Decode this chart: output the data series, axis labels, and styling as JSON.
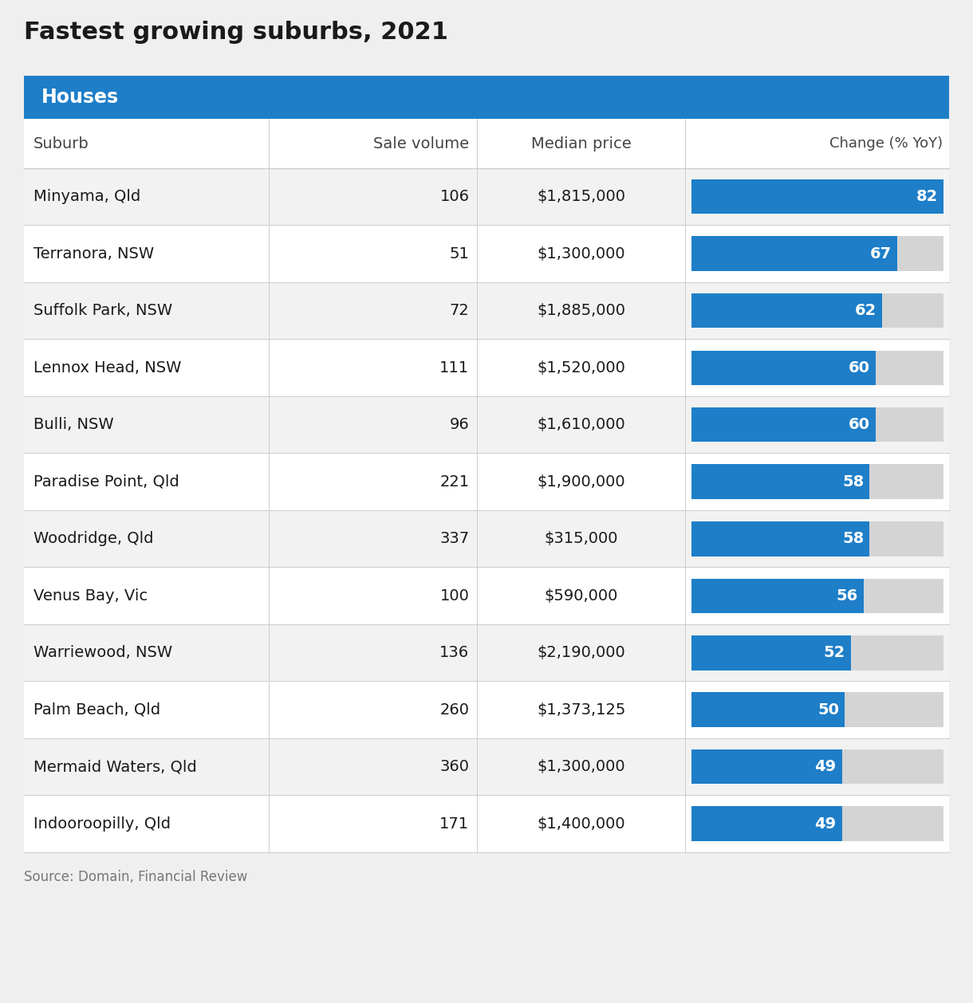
{
  "title": "Fastest growing suburbs, 2021",
  "section_header": "Houses",
  "col_headers": [
    "Suburb",
    "Sale volume",
    "Median price",
    "Change (% YoY)"
  ],
  "rows": [
    {
      "suburb": "Minyama, Qld",
      "sale_volume": "106",
      "median_price": "$1,815,000",
      "change": 82
    },
    {
      "suburb": "Terranora, NSW",
      "sale_volume": "51",
      "median_price": "$1,300,000",
      "change": 67
    },
    {
      "suburb": "Suffolk Park, NSW",
      "sale_volume": "72",
      "median_price": "$1,885,000",
      "change": 62
    },
    {
      "suburb": "Lennox Head, NSW",
      "sale_volume": "111",
      "median_price": "$1,520,000",
      "change": 60
    },
    {
      "suburb": "Bulli, NSW",
      "sale_volume": "96",
      "median_price": "$1,610,000",
      "change": 60
    },
    {
      "suburb": "Paradise Point, Qld",
      "sale_volume": "221",
      "median_price": "$1,900,000",
      "change": 58
    },
    {
      "suburb": "Woodridge, Qld",
      "sale_volume": "337",
      "median_price": "$315,000",
      "change": 58
    },
    {
      "suburb": "Venus Bay, Vic",
      "sale_volume": "100",
      "median_price": "$590,000",
      "change": 56
    },
    {
      "suburb": "Warriewood, NSW",
      "sale_volume": "136",
      "median_price": "$2,190,000",
      "change": 52
    },
    {
      "suburb": "Palm Beach, Qld",
      "sale_volume": "260",
      "median_price": "$1,373,125",
      "change": 50
    },
    {
      "suburb": "Mermaid Waters, Qld",
      "sale_volume": "360",
      "median_price": "$1,300,000",
      "change": 49
    },
    {
      "suburb": "Indooroopilly, Qld",
      "sale_volume": "171",
      "median_price": "$1,400,000",
      "change": 49
    }
  ],
  "max_change": 82,
  "bar_color": "#1E7EC8",
  "bar_bg_color": "#D4D4D4",
  "header_bg_color": "#1E7EC8",
  "header_text_color": "#FFFFFF",
  "title_color": "#1A1A1A",
  "col_header_color": "#444444",
  "cell_text_color": "#1A1A1A",
  "source_text": "Source: Domain, Financial Review",
  "source_color": "#777777",
  "row_bg_even": "#F2F2F2",
  "row_bg_odd": "#FFFFFF",
  "table_bg": "#FFFFFF",
  "divider_color": "#CCCCCC",
  "figure_bg": "#EFEFEF",
  "title_fontsize": 22,
  "header_fontsize": 17,
  "col_header_fontsize": 14,
  "cell_fontsize": 14,
  "source_fontsize": 12
}
